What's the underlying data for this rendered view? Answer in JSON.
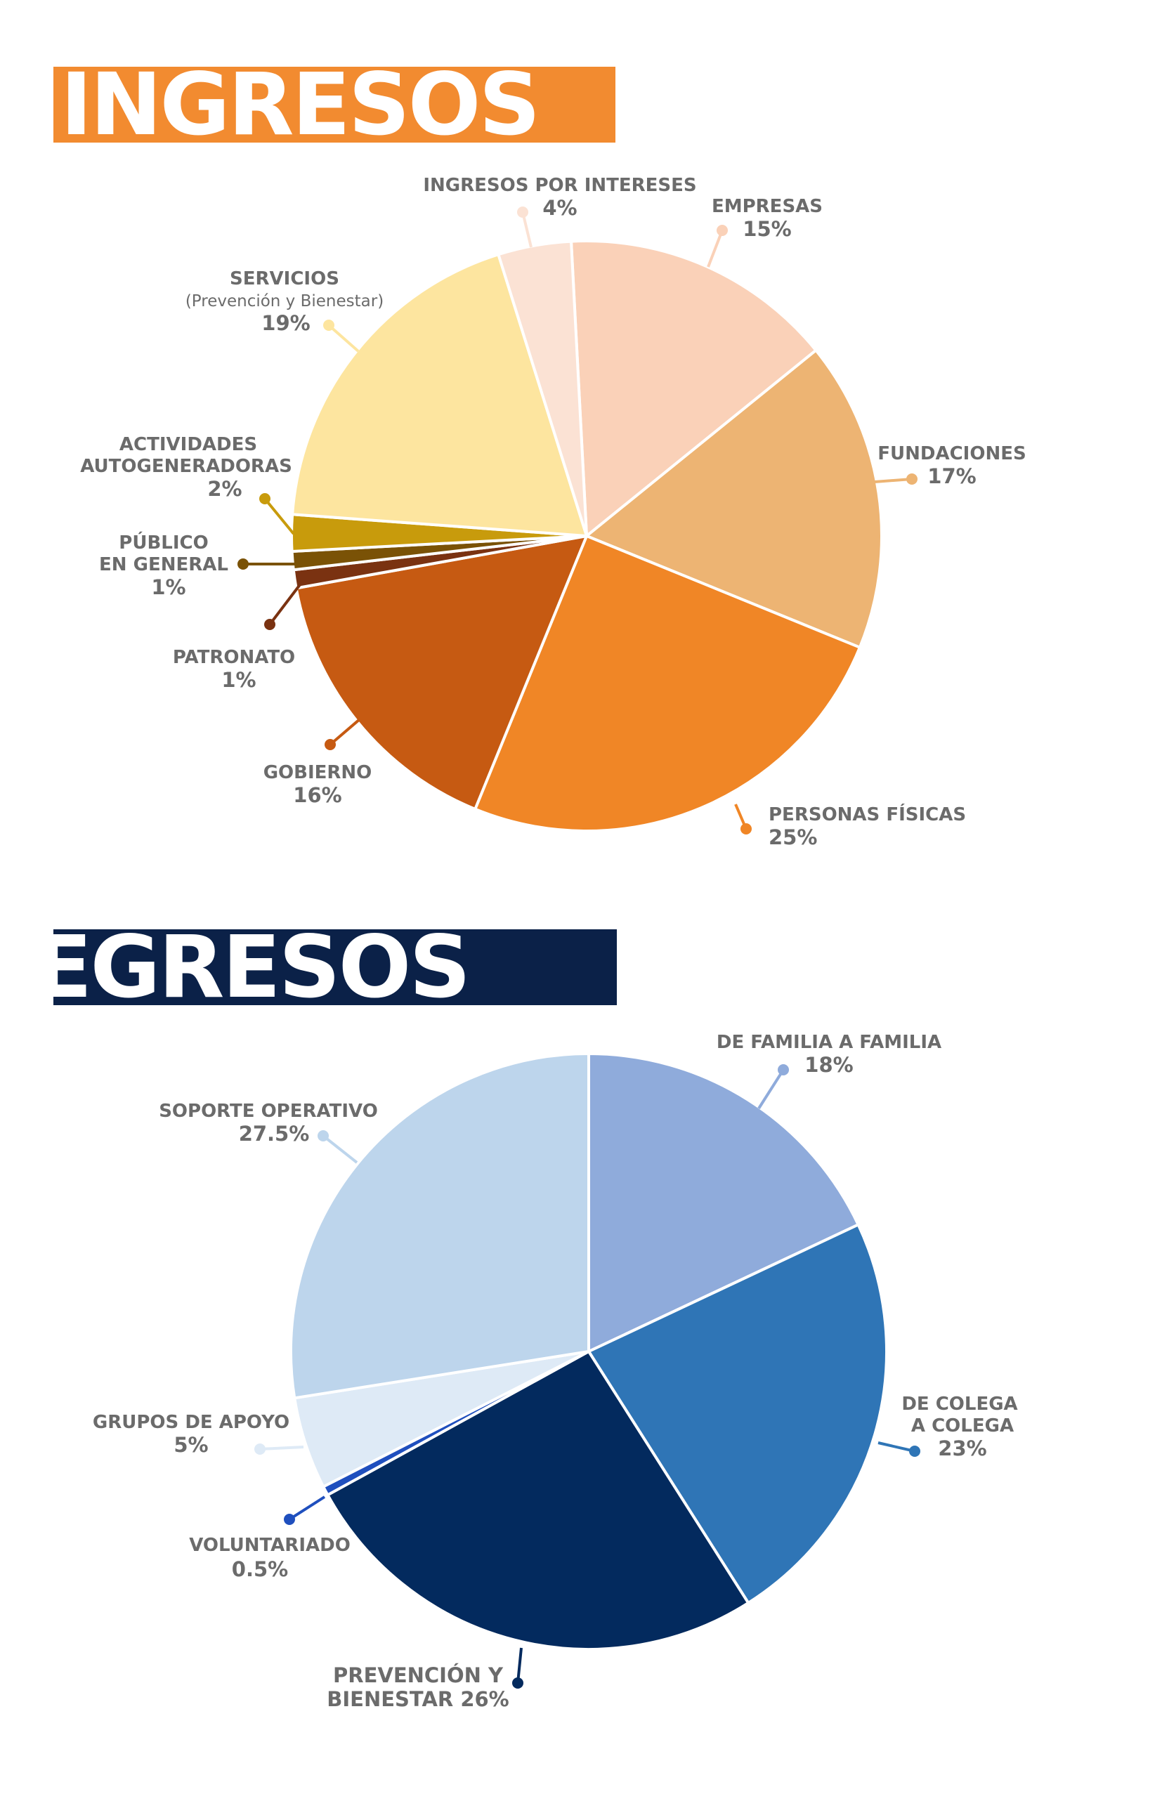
{
  "ingresos": {
    "title": "INGRESOS",
    "banner_color": "#F28B30"
  },
  "egresos": {
    "title": "EGRESOS",
    "banner_color": "#0B2148"
  },
  "chart_data": [
    {
      "type": "pie",
      "title": "INGRESOS",
      "slices": [
        {
          "label": "EMPRESAS",
          "value": 15,
          "value_label": "15%",
          "color": "#FAD1B8"
        },
        {
          "label": "FUNDACIONES",
          "value": 17,
          "value_label": "17%",
          "color": "#EDB473"
        },
        {
          "label": "PERSONAS FÍSICAS",
          "value": 25,
          "value_label": "25%",
          "color": "#F08626"
        },
        {
          "label": "GOBIERNO",
          "value": 16,
          "value_label": "16%",
          "color": "#C65A12"
        },
        {
          "label": "PATRONATO",
          "value": 1,
          "value_label": "1%",
          "color": "#7A3211"
        },
        {
          "label": "PÚBLICO EN GENERAL",
          "value": 1,
          "value_label": "1%",
          "color": "#7A5206"
        },
        {
          "label": "ACTIVIDADES AUTOGENERADORAS",
          "value": 2,
          "value_label": "2%",
          "color": "#C89B0C"
        },
        {
          "label": "SERVICIOS",
          "sublabel": "(Prevención y Bienestar)",
          "value": 19,
          "value_label": "19%",
          "color": "#FDE59F"
        },
        {
          "label": "INGRESOS POR INTERESES",
          "value": 4,
          "value_label": "4%",
          "color": "#FBE2D4"
        }
      ]
    },
    {
      "type": "pie",
      "title": "EGRESOS",
      "slices": [
        {
          "label": "DE FAMILIA A FAMILIA",
          "value": 18,
          "value_label": "18%",
          "color": "#8FABDB"
        },
        {
          "label": "DE COLEGA A COLEGA",
          "value": 23,
          "value_label": "23%",
          "color": "#2F75B6"
        },
        {
          "label": "PREVENCIÓN Y BIENESTAR",
          "value": 26,
          "value_label": "26%",
          "color": "#032A5E"
        },
        {
          "label": "VOLUNTARIADO",
          "value": 0.5,
          "value_label": "0.5%",
          "color": "#1F4FBE"
        },
        {
          "label": "GRUPOS DE APOYO",
          "value": 5,
          "value_label": "5%",
          "color": "#DEEAF6"
        },
        {
          "label": "SOPORTE OPERATIVO",
          "value": 27.5,
          "value_label": "27.5%",
          "color": "#BDD5EC"
        }
      ]
    }
  ]
}
